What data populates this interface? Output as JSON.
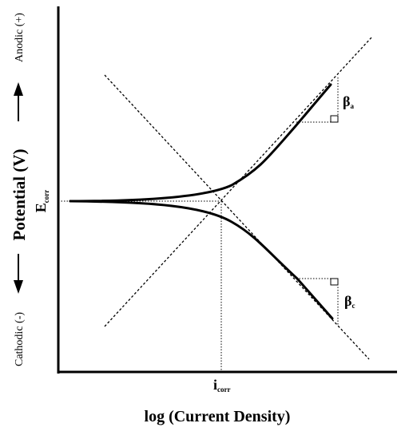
{
  "diagram": {
    "type": "tafel-plot",
    "xlabel": "log (Current Density)",
    "ylabel": "Potential (V)",
    "anodic_label": "Anodic (+)",
    "cathodic_label": "Cathodic (-)",
    "ecorr": {
      "main": "E",
      "sub": "corr"
    },
    "icorr": {
      "main": "i",
      "sub": "corr"
    },
    "beta_a": {
      "main": "β",
      "sub": "a"
    },
    "beta_c": {
      "main": "β",
      "sub": "c"
    }
  }
}
